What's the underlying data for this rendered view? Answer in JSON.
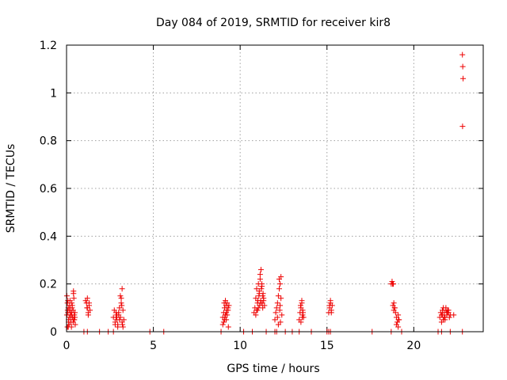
{
  "chart_data": {
    "type": "scatter",
    "title": "Day 084 of 2019, SRMTID for receiver kir8",
    "xlabel": "GPS time / hours",
    "ylabel": "SRMTID / TECUs",
    "xlim": [
      0,
      24
    ],
    "ylim": [
      0,
      1.2
    ],
    "xticks": [
      0,
      5,
      10,
      15,
      20
    ],
    "xtick_labels": [
      "0",
      "5",
      "10",
      "15",
      "20"
    ],
    "yticks": [
      0,
      0.2,
      0.4,
      0.6,
      0.8,
      1.0,
      1.2
    ],
    "ytick_labels": [
      "0",
      "0.2",
      "0.4",
      "0.6",
      "0.8",
      "1",
      "1.2"
    ],
    "grid": true,
    "marker": "+",
    "series": [
      {
        "name": "SRMTID kir8",
        "color": "#ee0000",
        "x": [
          0.02,
          0.05,
          0.08,
          0.1,
          0.12,
          0.15,
          0.18,
          0.2,
          0.22,
          0.25,
          0.28,
          0.3,
          0.33,
          0.35,
          0.38,
          0.4,
          0.42,
          0.45,
          0.48,
          0.5,
          0.05,
          0.12,
          0.2,
          0.3,
          0.4,
          0.45,
          0.35,
          0.25,
          0.15,
          0.06,
          0.08,
          0.18,
          0.28,
          0.38,
          0.48,
          0.1,
          0.22,
          0.32,
          0.42,
          0.02,
          1.1,
          1.15,
          1.2,
          1.25,
          1.3,
          1.35,
          1.2,
          1.25,
          1.3,
          1.18,
          2.7,
          2.75,
          2.8,
          2.85,
          2.9,
          2.95,
          3.0,
          3.05,
          3.1,
          3.15,
          3.2,
          3.25,
          3.3,
          2.8,
          2.9,
          3.0,
          3.1,
          3.2,
          3.25,
          3.15,
          3.05,
          2.95,
          2.85,
          3.18,
          3.22,
          9.0,
          9.05,
          9.1,
          9.15,
          9.2,
          9.25,
          9.3,
          9.35,
          9.05,
          9.15,
          9.25,
          9.1,
          9.2,
          9.3,
          9.0,
          9.12,
          9.22,
          9.32,
          9.08,
          9.18,
          10.8,
          10.85,
          10.9,
          10.95,
          11.0,
          11.05,
          11.1,
          11.15,
          11.2,
          11.25,
          11.3,
          11.35,
          11.4,
          10.9,
          11.0,
          11.1,
          11.2,
          11.3,
          11.15,
          11.25,
          11.05,
          10.95,
          11.35,
          11.18,
          11.28,
          11.08,
          11.22,
          11.32,
          11.12,
          11.02,
          12.0,
          12.05,
          12.1,
          12.15,
          12.2,
          12.25,
          12.3,
          12.35,
          12.4,
          12.2,
          12.3,
          12.15,
          12.25,
          12.35,
          12.28,
          12.32,
          13.4,
          13.45,
          13.5,
          13.55,
          13.6,
          13.65,
          13.5,
          13.55,
          13.6,
          13.48,
          13.58,
          13.62,
          15.1,
          15.15,
          15.2,
          15.25,
          15.3,
          15.2,
          15.25,
          15.15,
          18.7,
          18.75,
          18.8,
          18.85,
          18.9,
          18.95,
          19.0,
          19.05,
          19.1,
          19.15,
          18.8,
          18.85,
          18.9,
          19.0,
          19.1,
          18.78,
          18.82,
          19.12,
          21.5,
          21.55,
          21.6,
          21.65,
          21.7,
          21.75,
          21.8,
          21.85,
          21.9,
          21.95,
          22.0,
          22.05,
          22.1,
          21.6,
          21.7,
          21.8,
          21.9,
          22.0,
          21.65,
          21.75,
          21.85,
          21.95,
          22.3,
          22.8,
          22.82,
          22.84,
          22.81,
          1.0,
          1.2,
          1.9,
          2.4,
          2.7,
          4.8,
          5.6,
          8.9,
          10.2,
          10.7,
          11.5,
          12.0,
          12.1,
          12.6,
          13.0,
          13.4,
          14.1,
          15.0,
          15.1,
          15.2,
          17.6,
          18.7,
          19.3,
          21.4,
          21.6,
          22.1,
          22.8
        ],
        "y": [
          0.15,
          0.12,
          0.08,
          0.1,
          0.05,
          0.06,
          0.09,
          0.13,
          0.07,
          0.04,
          0.02,
          0.08,
          0.11,
          0.06,
          0.09,
          0.17,
          0.14,
          0.05,
          0.08,
          0.03,
          0.02,
          0.04,
          0.1,
          0.12,
          0.16,
          0.07,
          0.06,
          0.05,
          0.03,
          0.09,
          0.13,
          0.11,
          0.07,
          0.04,
          0.06,
          0.02,
          0.08,
          0.1,
          0.05,
          0.07,
          0.13,
          0.12,
          0.1,
          0.08,
          0.11,
          0.09,
          0.14,
          0.07,
          0.12,
          0.1,
          0.06,
          0.09,
          0.04,
          0.08,
          0.05,
          0.03,
          0.07,
          0.1,
          0.06,
          0.12,
          0.04,
          0.02,
          0.05,
          0.03,
          0.07,
          0.08,
          0.15,
          0.18,
          0.09,
          0.14,
          0.05,
          0.02,
          0.06,
          0.11,
          0.03,
          0.06,
          0.08,
          0.1,
          0.07,
          0.05,
          0.12,
          0.09,
          0.11,
          0.04,
          0.13,
          0.07,
          0.05,
          0.08,
          0.1,
          0.03,
          0.06,
          0.09,
          0.02,
          0.12,
          0.11,
          0.08,
          0.1,
          0.14,
          0.18,
          0.12,
          0.2,
          0.16,
          0.22,
          0.26,
          0.19,
          0.15,
          0.13,
          0.11,
          0.07,
          0.09,
          0.17,
          0.12,
          0.1,
          0.24,
          0.2,
          0.1,
          0.09,
          0.14,
          0.13,
          0.12,
          0.15,
          0.18,
          0.16,
          0.11,
          0.13,
          0.05,
          0.08,
          0.1,
          0.12,
          0.15,
          0.18,
          0.2,
          0.14,
          0.07,
          0.03,
          0.11,
          0.06,
          0.22,
          0.23,
          0.09,
          0.04,
          0.05,
          0.08,
          0.1,
          0.12,
          0.07,
          0.06,
          0.04,
          0.13,
          0.09,
          0.11,
          0.06,
          0.08,
          0.08,
          0.1,
          0.12,
          0.09,
          0.11,
          0.13,
          0.08,
          0.11,
          0.2,
          0.21,
          0.2,
          0.12,
          0.1,
          0.08,
          0.06,
          0.04,
          0.07,
          0.05,
          0.11,
          0.09,
          0.1,
          0.03,
          0.02,
          0.2,
          0.2,
          0.05,
          0.06,
          0.08,
          0.07,
          0.09,
          0.05,
          0.08,
          0.06,
          0.1,
          0.07,
          0.09,
          0.08,
          0.06,
          0.07,
          0.04,
          0.1,
          0.05,
          0.08,
          0.09,
          0.07,
          0.06,
          0.09,
          0.08,
          0.07,
          1.16,
          1.11,
          1.06,
          0.86,
          0,
          0,
          0,
          0,
          0,
          0,
          0,
          0,
          0,
          0,
          0,
          0,
          0,
          0,
          0,
          0,
          0,
          0,
          0,
          0,
          0,
          0,
          0,
          0,
          0,
          0,
          0
        ]
      }
    ]
  }
}
